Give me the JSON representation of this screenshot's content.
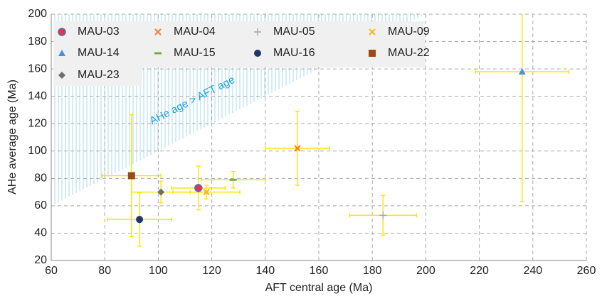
{
  "chart_data": {
    "type": "scatter",
    "x_label": "AFT central age (Ma)",
    "y_label": "AHe average age (Ma)",
    "annotation": "AHe age > AFT age",
    "annotation_color": "#1aa0d8",
    "region_color": "#a9d9ec",
    "error_color": "#ffe30a",
    "grid": true,
    "legend": "top-left",
    "xlim": [
      60,
      260
    ],
    "ylim": [
      20,
      200
    ],
    "xticks": [
      60,
      80,
      100,
      120,
      140,
      160,
      180,
      200,
      220,
      240,
      260
    ],
    "yticks": [
      20,
      40,
      60,
      80,
      100,
      120,
      140,
      160,
      180,
      200
    ],
    "series": [
      {
        "name": "MAU-03",
        "color": "#e8343a",
        "marker": "circle-outline",
        "x": [
          115
        ],
        "values": [
          73
        ],
        "xerr": [
          10
        ],
        "yerr": [
          16
        ]
      },
      {
        "name": "MAU-04",
        "color": "#f07d2e",
        "marker": "x",
        "x": [
          152
        ],
        "values": [
          102
        ],
        "xerr": [
          12
        ],
        "yerr": [
          27
        ]
      },
      {
        "name": "MAU-05",
        "color": "#a5a5a5",
        "marker": "plus",
        "x": [
          184
        ],
        "values": [
          53
        ],
        "xerr": [
          12.5
        ],
        "yerr": [
          14.5
        ]
      },
      {
        "name": "MAU-09",
        "color": "#f5b521",
        "marker": "x",
        "x": [
          118
        ],
        "values": [
          70
        ],
        "xerr": [
          12.5
        ],
        "yerr": [
          5
        ]
      },
      {
        "name": "MAU-14",
        "color": "#4a90d9",
        "marker": "triangle",
        "x": [
          236
        ],
        "values": [
          158
        ],
        "xerr": [
          17.5
        ],
        "yerr": [
          95
        ]
      },
      {
        "name": "MAU-15",
        "color": "#70ad47",
        "marker": "dash",
        "x": [
          128
        ],
        "values": [
          79
        ],
        "xerr": [
          12
        ],
        "yerr": [
          6
        ]
      },
      {
        "name": "MAU-16",
        "color": "#203864",
        "marker": "circle",
        "x": [
          93
        ],
        "values": [
          50
        ],
        "xerr": [
          12
        ],
        "yerr": [
          19.5
        ]
      },
      {
        "name": "MAU-22",
        "color": "#9c4a12",
        "marker": "square",
        "x": [
          90
        ],
        "values": [
          82
        ],
        "xerr": [
          11
        ],
        "yerr": [
          44.5
        ]
      },
      {
        "name": "MAU-23",
        "color": "#6e6e6e",
        "marker": "diamond",
        "x": [
          101
        ],
        "values": [
          70
        ],
        "xerr": [
          11
        ],
        "yerr": [
          8
        ]
      }
    ]
  }
}
